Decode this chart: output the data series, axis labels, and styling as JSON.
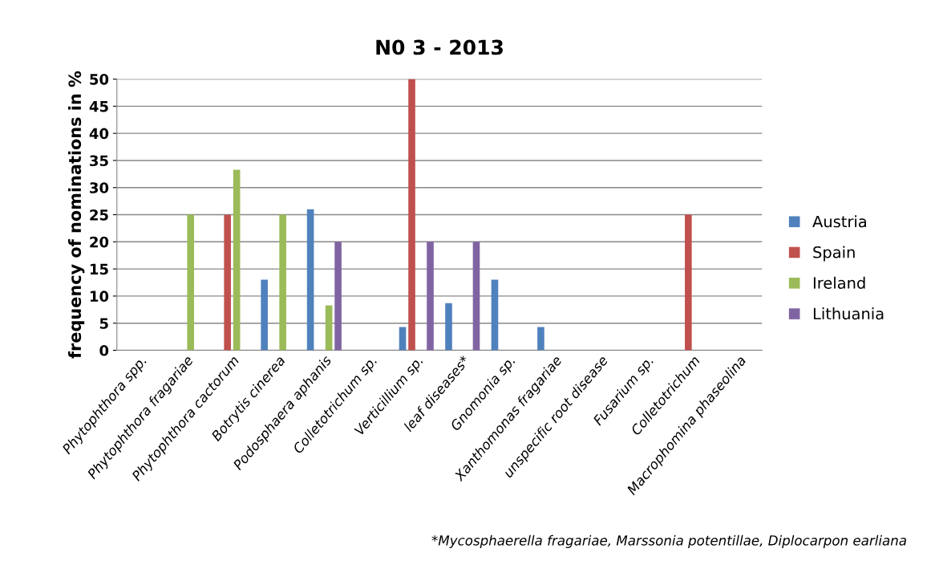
{
  "chart_data": {
    "type": "bar",
    "title": "N0 3 - 2013",
    "ylabel": "frequency of nominations in %",
    "categories": [
      "Phytophthora spp.",
      "Phytophthora fragariae",
      "Phytophthora cactorum",
      "Botrytis cinerea",
      "Podosphaera aphanis",
      "Colletotrichum sp.",
      "Verticillium sp.",
      "leaf diseases*",
      "Gnomonia sp.",
      "Xanthomonas fragariae",
      "unspecific root disease",
      "Fusarium sp.",
      "Colletotrichum",
      "Macrophomina phaseolina"
    ],
    "series": [
      {
        "name": "Austria",
        "color": "#4f81bd",
        "values": [
          0,
          0,
          0,
          13,
          26,
          0,
          4.3,
          8.7,
          13,
          4.3,
          0,
          0,
          0,
          0
        ]
      },
      {
        "name": "Spain",
        "color": "#c0504d",
        "values": [
          0,
          0,
          25,
          0,
          0,
          0,
          50,
          0,
          0,
          0,
          0,
          0,
          25,
          0
        ]
      },
      {
        "name": "Ireland",
        "color": "#9bbb59",
        "values": [
          0,
          25,
          33.3,
          25,
          8.3,
          0,
          0,
          0,
          0,
          0,
          0,
          0,
          0,
          0
        ]
      },
      {
        "name": "Lithuania",
        "color": "#8064a2",
        "values": [
          0,
          0,
          0,
          0,
          20,
          0,
          20,
          20,
          0,
          0,
          0,
          0,
          0,
          0
        ]
      }
    ],
    "ylim": [
      0,
      50
    ],
    "yticks": [
      0,
      5,
      10,
      15,
      20,
      25,
      30,
      35,
      40,
      45,
      50
    ],
    "grid": "y",
    "legend": "right",
    "annotations": [
      "*Mycosphaerella fragariae, Marssonia potentillae, Diplocarpon earliana"
    ]
  }
}
